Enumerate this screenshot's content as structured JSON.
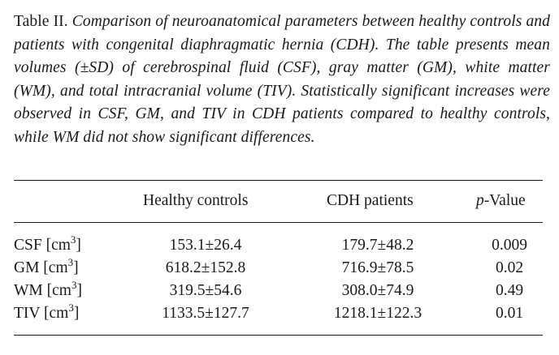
{
  "caption": {
    "label": "Table II. ",
    "text": "Comparison of neuroanatomical parameters between healthy controls and patients with congenital diaphragmatic hernia (CDH). The table presents mean volumes (±SD) of cerebrospinal fluid (CSF), gray matter (GM), white matter (WM), and total intracranial volume (TIV). Statistically significant increases were observed in CSF, GM, and TIV in CDH patients compared to healthy controls, while WM did not show significant differences."
  },
  "table": {
    "headers": {
      "healthy": "Healthy controls",
      "cdh": "CDH patients",
      "p_italic": "p",
      "p_rest": "-Value"
    },
    "rows": [
      {
        "label": "CSF [cm",
        "unit_exp": "3",
        "label_close": "]",
        "healthy": "153.1±26.4",
        "cdh": "179.7±48.2",
        "p": "0.009"
      },
      {
        "label": "GM [cm",
        "unit_exp": "3",
        "label_close": "]",
        "healthy": "618.2±152.8",
        "cdh": "716.9±78.5",
        "p": "0.02"
      },
      {
        "label": "WM [cm",
        "unit_exp": "3",
        "label_close": "]",
        "healthy": "319.5±54.6",
        "cdh": "308.0±74.9",
        "p": "0.49"
      },
      {
        "label": "TIV [cm",
        "unit_exp": "3",
        "label_close": "]",
        "healthy": "1133.5±127.7",
        "cdh": "1218.1±122.3",
        "p": "0.01"
      }
    ]
  }
}
